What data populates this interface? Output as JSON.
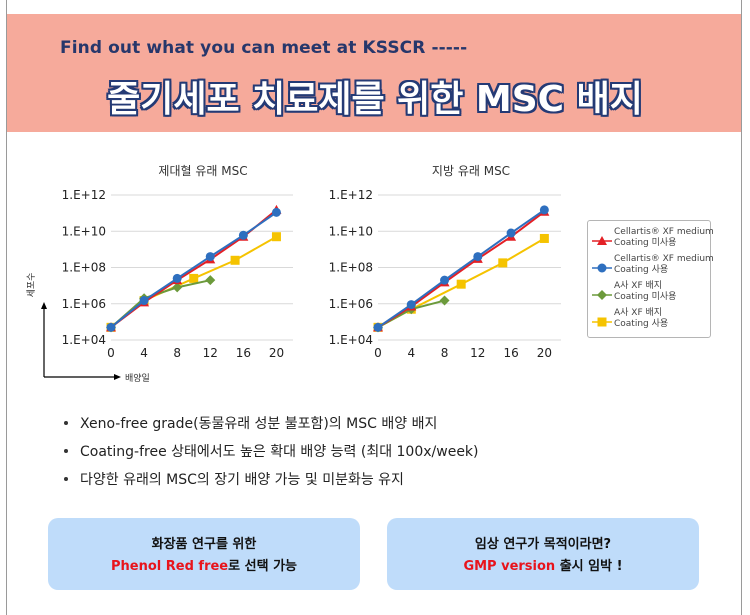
{
  "banner": {
    "subtitle": "Find out what you can meet at KSSCR -----",
    "title": "줄기세포 치료제를 위한 MSC 배지"
  },
  "axes": {
    "y_label": "세포수",
    "x_label": "배양일"
  },
  "chart_data": [
    {
      "type": "line",
      "title": "제대혈 유래 MSC",
      "y_scale": "log",
      "y_ticks": [
        "1.E+04",
        "1.E+06",
        "1.E+08",
        "1.E+10",
        "1.E+12"
      ],
      "y_tick_values": [
        10000,
        1000000,
        100000000,
        10000000000,
        1000000000000
      ],
      "ylim": [
        10000,
        1000000000000
      ],
      "x_ticks": [
        "0",
        "4",
        "8",
        "12",
        "16",
        "20"
      ],
      "xlim": [
        0,
        22
      ],
      "grid": true,
      "legend": "right",
      "series": [
        {
          "name": "Cellartis® XF medium Coating 미사용",
          "color": "#e32026",
          "marker": "triangle",
          "x": [
            0,
            4,
            8,
            12,
            16,
            20
          ],
          "y": [
            50000,
            1200000,
            20000000,
            280000000,
            5000000000,
            150000000000
          ]
        },
        {
          "name": "Cellartis® XF medium Coating 사용",
          "color": "#2e6fbf",
          "marker": "circle",
          "x": [
            0,
            4,
            8,
            12,
            16,
            20
          ],
          "y": [
            50000,
            1500000,
            25000000,
            400000000,
            6000000000,
            110000000000
          ]
        },
        {
          "name": "A사 XF 배지 Coating 미사용",
          "color": "#6c9a3b",
          "marker": "diamond",
          "x": [
            0,
            4,
            8,
            12
          ],
          "y": [
            50000,
            2000000,
            8000000,
            20000000
          ]
        },
        {
          "name": "A사 XF 배지 Coating 사용",
          "color": "#f5c300",
          "marker": "square",
          "x": [
            0,
            4,
            10,
            15,
            20
          ],
          "y": [
            50000,
            1500000,
            25000000,
            250000000,
            5000000000
          ]
        }
      ]
    },
    {
      "type": "line",
      "title": "지방 유래 MSC",
      "y_scale": "log",
      "y_ticks": [
        "1.E+04",
        "1.E+06",
        "1.E+08",
        "1.E+10",
        "1.E+12"
      ],
      "y_tick_values": [
        10000,
        1000000,
        100000000,
        10000000000,
        1000000000000
      ],
      "ylim": [
        10000,
        1000000000000
      ],
      "x_ticks": [
        "0",
        "4",
        "8",
        "12",
        "16",
        "20"
      ],
      "xlim": [
        0,
        22
      ],
      "grid": true,
      "legend": "right",
      "series": [
        {
          "name": "Cellartis® XF medium Coating 미사용",
          "color": "#e32026",
          "marker": "triangle",
          "x": [
            0,
            4,
            8,
            12,
            16,
            20
          ],
          "y": [
            50000,
            700000,
            15000000,
            300000000,
            5000000000,
            120000000000
          ]
        },
        {
          "name": "Cellartis® XF medium Coating 사용",
          "color": "#2e6fbf",
          "marker": "circle",
          "x": [
            0,
            4,
            8,
            12,
            16,
            20
          ],
          "y": [
            50000,
            900000,
            20000000,
            400000000,
            8000000000,
            150000000000
          ]
        },
        {
          "name": "A사 XF 배지 Coating 미사용",
          "color": "#6c9a3b",
          "marker": "diamond",
          "x": [
            0,
            4,
            8
          ],
          "y": [
            50000,
            500000,
            1500000
          ]
        },
        {
          "name": "A사 XF 배지 Coating 사용",
          "color": "#f5c300",
          "marker": "square",
          "x": [
            0,
            4,
            10,
            15,
            20
          ],
          "y": [
            50000,
            500000,
            12000000,
            180000000,
            4000000000
          ]
        }
      ]
    }
  ],
  "legend": [
    {
      "line1": "Cellartis® XF medium",
      "line2": "Coating 미사용",
      "color": "#e32026",
      "marker": "triangle"
    },
    {
      "line1": "Cellartis® XF medium",
      "line2": "Coating 사용",
      "color": "#2e6fbf",
      "marker": "circle"
    },
    {
      "line1": "A사 XF 배지",
      "line2": "Coating 미사용",
      "color": "#6c9a3b",
      "marker": "diamond"
    },
    {
      "line1": "A사 XF 배지",
      "line2": "Coating 사용",
      "color": "#f5c300",
      "marker": "square"
    }
  ],
  "bullets": [
    "Xeno-free grade(동물유래 성분 불포함)의 MSC 배양 배지",
    "Coating-free 상태에서도 높은 확대 배양 능력 (최대 100x/week)",
    "다양한 유래의 MSC의 장기 배양 가능 및 미분화능 유지"
  ],
  "boxes": [
    {
      "line1": "화장품 연구를 위한",
      "highlight": "Phenol Red free",
      "rest": "로 선택 가능"
    },
    {
      "line1": "임상 연구가 목적이라면?",
      "highlight": "GMP version",
      "rest": " 출시 임박 !"
    }
  ]
}
